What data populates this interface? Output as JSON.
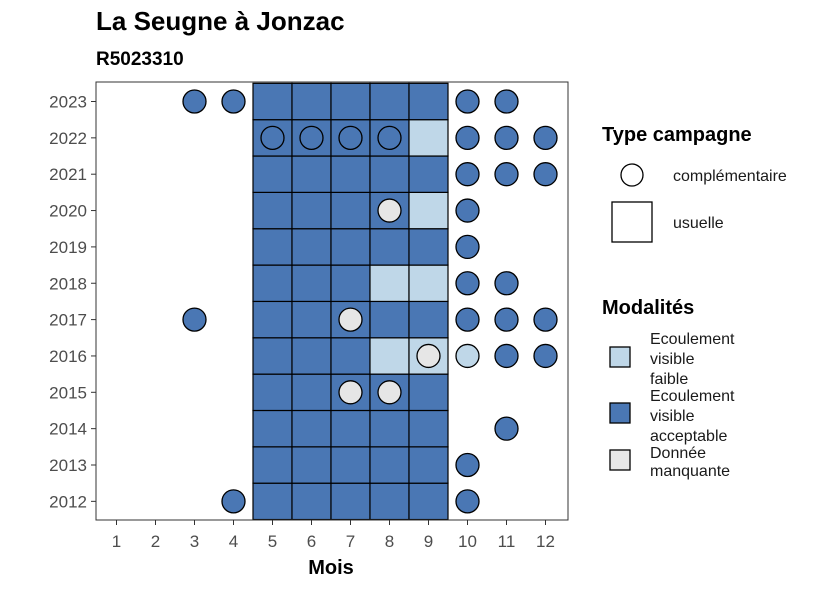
{
  "chart_data": {
    "type": "heatmap",
    "title": "La Seugne à Jonzac",
    "subtitle": "R5023310",
    "xlabel": "Mois",
    "ylabel": "",
    "x_ticks": [
      "1",
      "2",
      "3",
      "4",
      "5",
      "6",
      "7",
      "8",
      "9",
      "10",
      "11",
      "12"
    ],
    "y_ticks": [
      "2012",
      "2013",
      "2014",
      "2015",
      "2016",
      "2017",
      "2018",
      "2019",
      "2020",
      "2021",
      "2022",
      "2023"
    ],
    "grid": false,
    "colors": {
      "faible": "#bfd7e8",
      "acceptable": "#4a77b4",
      "manquante": "#e6e6e6"
    },
    "legend_shape": {
      "title": "Type campagne",
      "items": [
        {
          "key": "complementaire",
          "label": "complémentaire"
        },
        {
          "key": "usuelle",
          "label": "usuelle"
        }
      ]
    },
    "legend_color": {
      "title": "Modalités",
      "items": [
        {
          "key": "faible",
          "lines": [
            "Ecoulement",
            "visible",
            "faible"
          ]
        },
        {
          "key": "acceptable",
          "lines": [
            "Ecoulement",
            "visible",
            "acceptable"
          ]
        },
        {
          "key": "manquante",
          "lines": [
            "Donnée",
            "manquante"
          ]
        }
      ]
    },
    "usuelle": [
      {
        "year": 2012,
        "months": [
          "acceptable",
          "acceptable",
          "acceptable",
          "acceptable",
          "acceptable"
        ]
      },
      {
        "year": 2013,
        "months": [
          "acceptable",
          "acceptable",
          "acceptable",
          "acceptable",
          "acceptable"
        ]
      },
      {
        "year": 2014,
        "months": [
          "acceptable",
          "acceptable",
          "acceptable",
          "acceptable",
          "acceptable"
        ]
      },
      {
        "year": 2015,
        "months": [
          "acceptable",
          "acceptable",
          "acceptable",
          "acceptable",
          "acceptable"
        ]
      },
      {
        "year": 2016,
        "months": [
          "acceptable",
          "acceptable",
          "acceptable",
          "faible",
          "faible"
        ]
      },
      {
        "year": 2017,
        "months": [
          "acceptable",
          "acceptable",
          "acceptable",
          "acceptable",
          "acceptable"
        ]
      },
      {
        "year": 2018,
        "months": [
          "acceptable",
          "acceptable",
          "acceptable",
          "faible",
          "faible"
        ]
      },
      {
        "year": 2019,
        "months": [
          "acceptable",
          "acceptable",
          "acceptable",
          "acceptable",
          "acceptable"
        ]
      },
      {
        "year": 2020,
        "months": [
          "acceptable",
          "acceptable",
          "acceptable",
          "acceptable",
          "faible"
        ]
      },
      {
        "year": 2021,
        "months": [
          "acceptable",
          "acceptable",
          "acceptable",
          "acceptable",
          "acceptable"
        ]
      },
      {
        "year": 2022,
        "months": [
          "acceptable",
          "acceptable",
          "acceptable",
          "acceptable",
          "faible"
        ]
      },
      {
        "year": 2023,
        "months": [
          "acceptable",
          "acceptable",
          "acceptable",
          "acceptable",
          "acceptable"
        ]
      }
    ],
    "usuelle_month_start": 5,
    "complementaire": [
      {
        "year": 2012,
        "month": 4,
        "value": "acceptable"
      },
      {
        "year": 2012,
        "month": 10,
        "value": "acceptable"
      },
      {
        "year": 2013,
        "month": 10,
        "value": "acceptable"
      },
      {
        "year": 2014,
        "month": 11,
        "value": "acceptable"
      },
      {
        "year": 2015,
        "month": 7,
        "value": "manquante"
      },
      {
        "year": 2015,
        "month": 8,
        "value": "manquante"
      },
      {
        "year": 2016,
        "month": 9,
        "value": "manquante"
      },
      {
        "year": 2016,
        "month": 10,
        "value": "faible"
      },
      {
        "year": 2016,
        "month": 11,
        "value": "acceptable"
      },
      {
        "year": 2016,
        "month": 12,
        "value": "acceptable"
      },
      {
        "year": 2017,
        "month": 3,
        "value": "acceptable"
      },
      {
        "year": 2017,
        "month": 7,
        "value": "manquante"
      },
      {
        "year": 2017,
        "month": 10,
        "value": "acceptable"
      },
      {
        "year": 2017,
        "month": 11,
        "value": "acceptable"
      },
      {
        "year": 2017,
        "month": 12,
        "value": "acceptable"
      },
      {
        "year": 2018,
        "month": 10,
        "value": "acceptable"
      },
      {
        "year": 2018,
        "month": 11,
        "value": "acceptable"
      },
      {
        "year": 2019,
        "month": 10,
        "value": "acceptable"
      },
      {
        "year": 2020,
        "month": 8,
        "value": "manquante"
      },
      {
        "year": 2020,
        "month": 10,
        "value": "acceptable"
      },
      {
        "year": 2021,
        "month": 10,
        "value": "acceptable"
      },
      {
        "year": 2021,
        "month": 11,
        "value": "acceptable"
      },
      {
        "year": 2021,
        "month": 12,
        "value": "acceptable"
      },
      {
        "year": 2022,
        "month": 5,
        "value": "acceptable"
      },
      {
        "year": 2022,
        "month": 6,
        "value": "acceptable"
      },
      {
        "year": 2022,
        "month": 7,
        "value": "acceptable"
      },
      {
        "year": 2022,
        "month": 8,
        "value": "acceptable"
      },
      {
        "year": 2022,
        "month": 10,
        "value": "acceptable"
      },
      {
        "year": 2022,
        "month": 11,
        "value": "acceptable"
      },
      {
        "year": 2022,
        "month": 12,
        "value": "acceptable"
      },
      {
        "year": 2023,
        "month": 3,
        "value": "acceptable"
      },
      {
        "year": 2023,
        "month": 4,
        "value": "acceptable"
      },
      {
        "year": 2023,
        "month": 10,
        "value": "acceptable"
      },
      {
        "year": 2023,
        "month": 11,
        "value": "acceptable"
      }
    ]
  }
}
